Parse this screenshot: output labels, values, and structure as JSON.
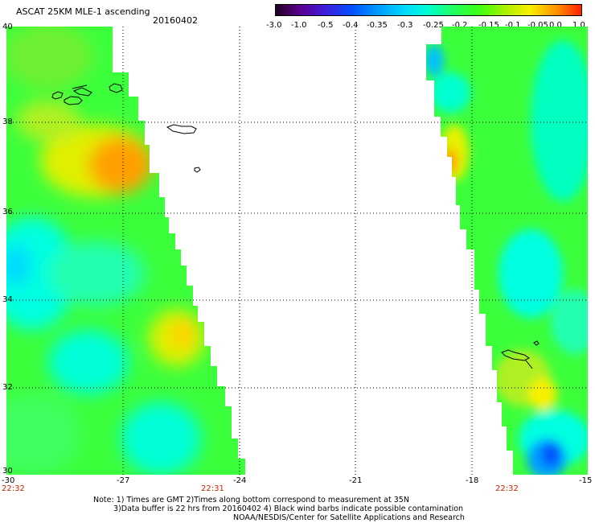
{
  "title": "ASCAT 25KM MLE-1 ascending",
  "date": "20160402",
  "colorbar": {
    "labels": [
      "-3.0",
      "-1.0",
      "-0.5",
      "-0.4",
      "-0.35",
      "-0.3",
      "-0.25",
      "-0.2",
      "-0.15",
      "-0.1",
      "-0.05",
      "0.0",
      "1.0"
    ],
    "colors": [
      "#200020",
      "#5a0090",
      "#3b20e0",
      "#0050ff",
      "#0098ff",
      "#00d8ff",
      "#00ffd0",
      "#20ff60",
      "#40ff10",
      "#a8f000",
      "#f8f000",
      "#ff9000",
      "#ff2000"
    ]
  },
  "axes": {
    "longitude_labels": [
      "-30",
      "-27",
      "-24",
      "-21",
      "-18",
      "-15"
    ],
    "latitude_labels": [
      "40",
      "38",
      "36",
      "34",
      "32",
      "30"
    ]
  },
  "swath_times": [
    "22:32",
    "22:31",
    "22:32"
  ],
  "notes": [
    "Note: 1) Times are GMT 2)Times along bottom correspond to measurement at 35N",
    "3)Data buffer is 22 hrs from 20160402 4) Black wind barbs indicate possible contamination",
    "NOAA/NESDIS/Center for Satellite Applications and Research"
  ],
  "legend_colors": {
    "cyan": "#00ffd8",
    "green": "#20ff40",
    "yellow": "#e8f000",
    "orange": "#ff9800",
    "blue": "#0060ff"
  }
}
